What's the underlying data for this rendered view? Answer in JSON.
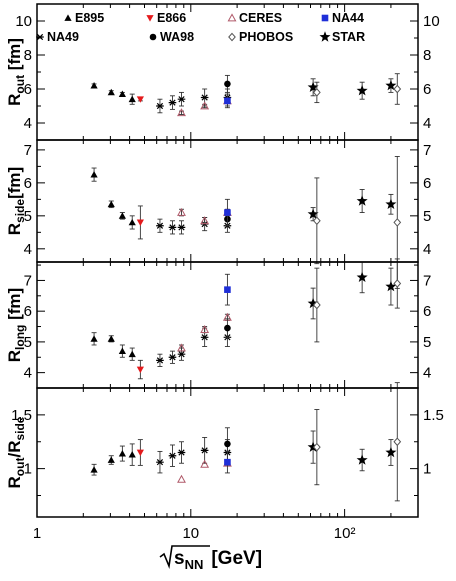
{
  "chart_data": {
    "type": "scatter",
    "x_scale": "log",
    "xlim": [
      1,
      300
    ],
    "x_ticks": [
      1,
      10,
      100
    ],
    "x_tick_labels": [
      "1",
      "10",
      "10²"
    ],
    "xlabel": "√s_NN [GeV]",
    "legend": {
      "placement": "top",
      "entries": [
        {
          "name": "E895",
          "marker": "triangle",
          "color": "#000000"
        },
        {
          "name": "NA49",
          "marker": "asterisk",
          "color": "#000000"
        },
        {
          "name": "E866",
          "marker": "triangle-down",
          "color": "#e41a1c"
        },
        {
          "name": "WA98",
          "marker": "circle",
          "color": "#000000"
        },
        {
          "name": "CERES",
          "marker": "triangle-open",
          "color": "#b05a6a"
        },
        {
          "name": "PHOBOS",
          "marker": "diamond-open",
          "color": "#555555"
        },
        {
          "name": "NA44",
          "marker": "square",
          "color": "#1f2fd8"
        },
        {
          "name": "STAR",
          "marker": "star",
          "color": "#000000"
        }
      ]
    },
    "panels": [
      {
        "id": "rout",
        "ylabel_main": "R",
        "ylabel_sub": "out",
        "ylabel_unit": " [fm]",
        "ylim": [
          3,
          11
        ],
        "yticks": [
          4,
          6,
          8,
          10
        ],
        "yticklabels": [
          "4",
          "6",
          "8",
          "10"
        ],
        "series": [
          {
            "name": "E895",
            "points": [
              [
                2.35,
                6.2,
                0.1
              ],
              [
                3.04,
                5.8,
                0.1
              ],
              [
                3.59,
                5.7,
                0.1
              ],
              [
                4.16,
                5.4,
                0.3
              ]
            ]
          },
          {
            "name": "E866",
            "points": [
              [
                4.7,
                5.4,
                0.1
              ]
            ]
          },
          {
            "name": "NA49",
            "points": [
              [
                6.3,
                5.0,
                0.4
              ],
              [
                7.6,
                5.2,
                0.4
              ],
              [
                8.7,
                5.4,
                0.4
              ],
              [
                12.3,
                5.5,
                0.5
              ],
              [
                17.3,
                5.5,
                0.5
              ]
            ]
          },
          {
            "name": "CERES",
            "points": [
              [
                8.7,
                4.6,
                0.1
              ],
              [
                12.3,
                5.0,
                0.1
              ],
              [
                17.3,
                5.3,
                0.1
              ]
            ]
          },
          {
            "name": "WA98",
            "points": [
              [
                17.3,
                6.3,
                0.5
              ]
            ]
          },
          {
            "name": "NA44",
            "points": [
              [
                17.3,
                5.3,
                0.4
              ]
            ]
          },
          {
            "name": "STAR",
            "points": [
              [
                62.4,
                6.1,
                0.5
              ],
              [
                130,
                5.9,
                0.5
              ],
              [
                200,
                6.2,
                0.4
              ]
            ]
          },
          {
            "name": "PHOBOS",
            "points": [
              [
                66,
                5.8,
                0.6
              ],
              [
                220,
                6.0,
                0.9
              ]
            ]
          }
        ]
      },
      {
        "id": "rside",
        "ylabel_main": "R",
        "ylabel_sub": "side",
        "ylabel_unit": "[fm]",
        "ylim": [
          3.6,
          7.3
        ],
        "yticks": [
          4,
          5,
          6,
          7
        ],
        "yticklabels": [
          "4",
          "5",
          "6",
          "7"
        ],
        "series": [
          {
            "name": "E895",
            "points": [
              [
                2.35,
                6.25,
                0.2
              ],
              [
                3.04,
                5.35,
                0.1
              ],
              [
                3.59,
                5.0,
                0.1
              ],
              [
                4.16,
                4.8,
                0.2
              ]
            ]
          },
          {
            "name": "E866",
            "points": [
              [
                4.7,
                4.8,
                0.5
              ]
            ]
          },
          {
            "name": "NA49",
            "points": [
              [
                6.3,
                4.7,
                0.2
              ],
              [
                7.6,
                4.65,
                0.2
              ],
              [
                8.7,
                4.65,
                0.2
              ],
              [
                12.3,
                4.75,
                0.2
              ],
              [
                17.3,
                4.7,
                0.2
              ]
            ]
          },
          {
            "name": "CERES",
            "points": [
              [
                8.7,
                5.1,
                0.1
              ],
              [
                12.3,
                4.85,
                0.1
              ],
              [
                17.3,
                5.1,
                0.1
              ]
            ]
          },
          {
            "name": "WA98",
            "points": [
              [
                17.3,
                4.9,
                0.2
              ]
            ]
          },
          {
            "name": "NA44",
            "points": [
              [
                17.3,
                5.1,
                0.4
              ]
            ]
          },
          {
            "name": "STAR",
            "points": [
              [
                62.4,
                5.05,
                0.2
              ],
              [
                130,
                5.45,
                0.35
              ],
              [
                200,
                5.35,
                0.3
              ]
            ]
          },
          {
            "name": "PHOBOS",
            "points": [
              [
                66,
                4.85,
                1.3
              ],
              [
                220,
                4.8,
                2.0
              ]
            ]
          }
        ]
      },
      {
        "id": "rlong",
        "ylabel_main": "R",
        "ylabel_sub": "long",
        "ylabel_unit": " [fm]",
        "ylim": [
          3.5,
          7.6
        ],
        "yticks": [
          4,
          5,
          6,
          7
        ],
        "yticklabels": [
          "4",
          "5",
          "6",
          "7"
        ],
        "series": [
          {
            "name": "E895",
            "points": [
              [
                2.35,
                5.1,
                0.2
              ],
              [
                3.04,
                5.1,
                0.1
              ],
              [
                3.59,
                4.7,
                0.2
              ],
              [
                4.16,
                4.6,
                0.2
              ]
            ]
          },
          {
            "name": "E866",
            "points": [
              [
                4.7,
                4.1,
                0.3
              ]
            ]
          },
          {
            "name": "NA49",
            "points": [
              [
                6.3,
                4.4,
                0.2
              ],
              [
                7.6,
                4.5,
                0.2
              ],
              [
                8.7,
                4.6,
                0.2
              ],
              [
                12.3,
                5.15,
                0.3
              ],
              [
                17.3,
                5.15,
                0.3
              ]
            ]
          },
          {
            "name": "CERES",
            "points": [
              [
                8.7,
                4.8,
                0.1
              ],
              [
                12.3,
                5.4,
                0.1
              ],
              [
                17.3,
                5.8,
                0.1
              ]
            ]
          },
          {
            "name": "WA98",
            "points": [
              [
                17.3,
                5.45,
                0.3
              ]
            ]
          },
          {
            "name": "NA44",
            "points": [
              [
                17.3,
                6.7,
                0.5
              ]
            ]
          },
          {
            "name": "STAR",
            "points": [
              [
                62.4,
                6.25,
                0.5
              ],
              [
                130,
                7.1,
                0.5
              ],
              [
                200,
                6.8,
                0.6
              ]
            ]
          },
          {
            "name": "PHOBOS",
            "points": [
              [
                66,
                6.2,
                1.2
              ],
              [
                220,
                6.9,
                0.8
              ]
            ]
          }
        ]
      },
      {
        "id": "ratio",
        "ylabel_main": "R",
        "ylabel_sub": "out",
        "ylabel_slash": "/R",
        "ylabel_sub2": "side",
        "ylim": [
          0.55,
          1.75
        ],
        "yticks": [
          1.0,
          1.5
        ],
        "yticklabels": [
          "1",
          "1.5"
        ],
        "series": [
          {
            "name": "E895",
            "points": [
              [
                2.35,
                0.99,
                0.05
              ],
              [
                3.04,
                1.08,
                0.04
              ],
              [
                3.59,
                1.14,
                0.07
              ],
              [
                4.16,
                1.13,
                0.1
              ]
            ]
          },
          {
            "name": "E866",
            "points": [
              [
                4.7,
                1.15,
                0.12
              ]
            ]
          },
          {
            "name": "NA49",
            "points": [
              [
                6.3,
                1.06,
                0.1
              ],
              [
                7.6,
                1.12,
                0.1
              ],
              [
                8.7,
                1.15,
                0.1
              ],
              [
                12.3,
                1.17,
                0.12
              ],
              [
                17.3,
                1.15,
                0.12
              ]
            ]
          },
          {
            "name": "CERES",
            "points": [
              [
                8.7,
                0.9,
                0.0
              ],
              [
                12.3,
                1.04,
                0.0
              ],
              [
                17.3,
                1.05,
                0.0
              ]
            ]
          },
          {
            "name": "WA98",
            "points": [
              [
                17.3,
                1.23,
                0.15
              ]
            ]
          },
          {
            "name": "NA44",
            "points": [
              [
                17.3,
                1.06,
                0.1
              ]
            ]
          },
          {
            "name": "STAR",
            "points": [
              [
                62.4,
                1.2,
                0.15
              ],
              [
                130,
                1.08,
                0.1
              ],
              [
                200,
                1.15,
                0.12
              ]
            ]
          },
          {
            "name": "PHOBOS",
            "points": [
              [
                66,
                1.2,
                0.35
              ],
              [
                220,
                1.25,
                0.55
              ]
            ]
          }
        ]
      }
    ]
  }
}
